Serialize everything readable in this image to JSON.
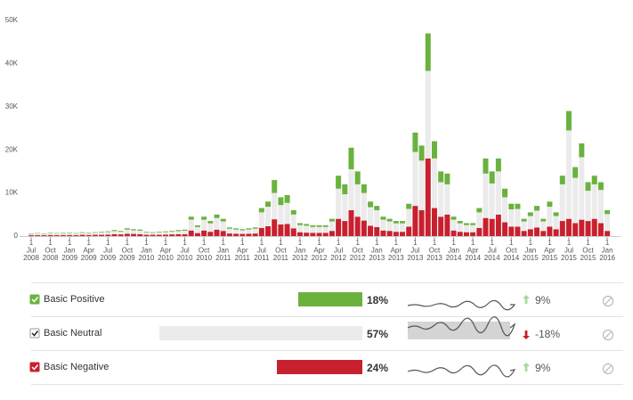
{
  "chart_data": {
    "type": "stacked_bar",
    "categories": [
      [
        "1",
        "Jul",
        "2008"
      ],
      null,
      null,
      [
        "1",
        "Oct",
        "2008"
      ],
      null,
      null,
      [
        "1",
        "Jan",
        "2009"
      ],
      null,
      null,
      [
        "1",
        "Apr",
        "2009"
      ],
      null,
      null,
      [
        "1",
        "Jul",
        "2009"
      ],
      null,
      null,
      [
        "1",
        "Oct",
        "2009"
      ],
      null,
      null,
      [
        "1",
        "Jan",
        "2010"
      ],
      null,
      null,
      [
        "1",
        "Apr",
        "2010"
      ],
      null,
      null,
      [
        "1",
        "Jul",
        "2010"
      ],
      null,
      null,
      [
        "1",
        "Oct",
        "2010"
      ],
      null,
      null,
      [
        "1",
        "Jan",
        "2011"
      ],
      null,
      null,
      [
        "1",
        "Apr",
        "2011"
      ],
      null,
      null,
      [
        "1",
        "Jul",
        "2011"
      ],
      null,
      null,
      [
        "1",
        "Oct",
        "2011"
      ],
      null,
      null,
      [
        "1",
        "Jan",
        "2012"
      ],
      null,
      null,
      [
        "1",
        "Apr",
        "2012"
      ],
      null,
      null,
      [
        "1",
        "Jul",
        "2012"
      ],
      null,
      null,
      [
        "1",
        "Oct",
        "2012"
      ],
      null,
      null,
      [
        "1",
        "Jan",
        "2013"
      ],
      null,
      null,
      [
        "1",
        "Apr",
        "2013"
      ],
      null,
      null,
      [
        "1",
        "Jul",
        "2013"
      ],
      null,
      null,
      [
        "1",
        "Oct",
        "2013"
      ],
      null,
      null,
      [
        "1",
        "Jan",
        "2014"
      ],
      null,
      null,
      [
        "1",
        "Apr",
        "2014"
      ],
      null,
      null,
      [
        "1",
        "Jul",
        "2014"
      ],
      null,
      null,
      [
        "1",
        "Oct",
        "2014"
      ],
      null,
      null,
      [
        "1",
        "Jan",
        "2015"
      ],
      null,
      null,
      [
        "1",
        "Apr",
        "2015"
      ],
      null,
      null,
      [
        "1",
        "Jul",
        "2015"
      ],
      null,
      null,
      [
        "1",
        "Oct",
        "2015"
      ],
      null,
      null,
      [
        "1",
        "Jan",
        "2016"
      ]
    ],
    "series": [
      {
        "name": "Basic Negative",
        "color": "#c8202f",
        "values": [
          200,
          200,
          200,
          250,
          200,
          250,
          250,
          200,
          300,
          250,
          300,
          300,
          350,
          450,
          400,
          550,
          500,
          450,
          300,
          300,
          300,
          350,
          400,
          450,
          450,
          1300,
          700,
          1300,
          1000,
          1500,
          1200,
          600,
          550,
          500,
          550,
          600,
          1900,
          2300,
          3900,
          2700,
          2800,
          1800,
          900,
          800,
          750,
          750,
          750,
          1200,
          4000,
          3500,
          6000,
          4500,
          3600,
          2400,
          2100,
          1300,
          1200,
          1000,
          1000,
          2200,
          7000,
          6000,
          18000,
          6500,
          4500,
          5000,
          1300,
          1000,
          900,
          900,
          1900,
          4200,
          4000,
          5000,
          3200,
          2200,
          2200,
          1200,
          1600,
          2000,
          1200,
          2200,
          1600,
          3500,
          4000,
          3000,
          3800,
          3500,
          4000,
          3000,
          1200
        ]
      },
      {
        "name": "Basic Neutral",
        "color": "#ebebeb",
        "values": [
          300,
          400,
          300,
          430,
          400,
          430,
          430,
          400,
          450,
          430,
          470,
          550,
          580,
          700,
          600,
          950,
          850,
          800,
          550,
          450,
          550,
          580,
          600,
          700,
          800,
          2500,
          1400,
          2500,
          1950,
          2700,
          2200,
          1100,
          970,
          850,
          970,
          1100,
          3600,
          4500,
          6100,
          4500,
          4900,
          3200,
          1650,
          1600,
          1370,
          1370,
          1370,
          2200,
          7000,
          6200,
          9500,
          7500,
          6400,
          4300,
          3900,
          2500,
          2200,
          1950,
          1950,
          4100,
          12500,
          11500,
          20300,
          11500,
          8000,
          7000,
          2500,
          1950,
          1650,
          1650,
          3600,
          10300,
          8200,
          10000,
          5800,
          4000,
          4100,
          2200,
          3050,
          3900,
          2200,
          4600,
          3050,
          8500,
          20500,
          10500,
          14500,
          7000,
          8000,
          7700,
          3900
        ]
      },
      {
        "name": "Basic Positive",
        "color": "#6ab23e",
        "values": [
          100,
          100,
          100,
          120,
          100,
          120,
          120,
          100,
          150,
          120,
          130,
          150,
          170,
          250,
          200,
          300,
          250,
          250,
          150,
          150,
          150,
          170,
          200,
          250,
          250,
          700,
          400,
          700,
          550,
          800,
          600,
          300,
          280,
          250,
          280,
          300,
          1000,
          1200,
          3000,
          1800,
          1800,
          1000,
          450,
          400,
          380,
          380,
          380,
          600,
          3000,
          2300,
          5000,
          3000,
          2000,
          1300,
          1000,
          700,
          600,
          550,
          550,
          1200,
          4500,
          3500,
          8700,
          4000,
          2500,
          2500,
          700,
          550,
          450,
          450,
          1000,
          3500,
          2800,
          3000,
          2000,
          1300,
          1200,
          600,
          850,
          1100,
          600,
          1200,
          850,
          2000,
          4500,
          2500,
          3200,
          2000,
          2000,
          1800,
          900
        ]
      }
    ],
    "ylim": [
      0,
      50000
    ],
    "yticks": [
      0,
      {
        "value": 10000,
        "label": "10K"
      },
      {
        "value": 20000,
        "label": "20K"
      },
      {
        "value": 30000,
        "label": "30K"
      },
      {
        "value": 40000,
        "label": "40K"
      },
      {
        "value": 50000,
        "label": "50K"
      }
    ],
    "grid": false
  },
  "legend_table": {
    "rows": [
      {
        "name": "Basic Positive",
        "color": "#6ab23e",
        "share": 18,
        "share_label": "18%",
        "change": 9,
        "change_label": "9%",
        "direction": "up"
      },
      {
        "name": "Basic Neutral",
        "color": "#ebebeb",
        "share": 57,
        "share_label": "57%",
        "change": -18,
        "change_label": "-18%",
        "direction": "down"
      },
      {
        "name": "Basic Negative",
        "color": "#c8202f",
        "share": 24,
        "share_label": "24%",
        "change": 9,
        "change_label": "9%",
        "direction": "up"
      }
    ]
  }
}
